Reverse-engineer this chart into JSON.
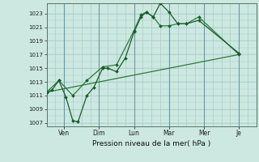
{
  "xlabel": "Pression niveau de la mer( hPa )",
  "background_color": "#cce8e0",
  "grid_color": "#aacccc",
  "line_color_dark": "#1a5c2a",
  "line_color_mid": "#2d7a3a",
  "ylim": [
    1006.5,
    1024.5
  ],
  "yticks": [
    1007,
    1009,
    1011,
    1013,
    1015,
    1017,
    1019,
    1021,
    1023
  ],
  "xtick_labels": [
    "Ven",
    "Dim",
    "Lun",
    "Mar",
    "Mer",
    "Je"
  ],
  "xtick_positions": [
    1,
    3,
    5,
    7,
    9,
    11
  ],
  "xlim": [
    0,
    12
  ],
  "series1_x": [
    0.0,
    0.3,
    0.7,
    1.1,
    1.5,
    1.8,
    2.3,
    2.7,
    3.2,
    3.5,
    4.0,
    4.5,
    5.0,
    5.4,
    5.7,
    6.1,
    6.5,
    7.0,
    7.5,
    8.0,
    8.7,
    11.0
  ],
  "series1_y": [
    1011.5,
    1011.8,
    1013.2,
    1010.8,
    1007.3,
    1007.2,
    1011.0,
    1012.2,
    1015.0,
    1015.0,
    1014.5,
    1016.5,
    1020.3,
    1022.5,
    1023.2,
    1022.5,
    1024.5,
    1023.2,
    1021.5,
    1021.5,
    1022.0,
    1017.2
  ],
  "series2_x": [
    0.0,
    0.7,
    1.5,
    2.3,
    3.2,
    4.0,
    5.0,
    5.4,
    5.7,
    6.1,
    6.5,
    7.0,
    7.5,
    8.0,
    8.7,
    11.0
  ],
  "series2_y": [
    1011.5,
    1013.2,
    1011.0,
    1013.2,
    1015.2,
    1015.5,
    1020.5,
    1022.8,
    1023.2,
    1022.5,
    1021.2,
    1021.2,
    1021.5,
    1021.5,
    1022.5,
    1017.0
  ],
  "series3_x": [
    0.0,
    11.0
  ],
  "series3_y": [
    1011.5,
    1017.0
  ],
  "vline_positions": [
    1,
    3,
    5,
    7,
    9,
    11
  ],
  "vline_color": "#6699aa"
}
